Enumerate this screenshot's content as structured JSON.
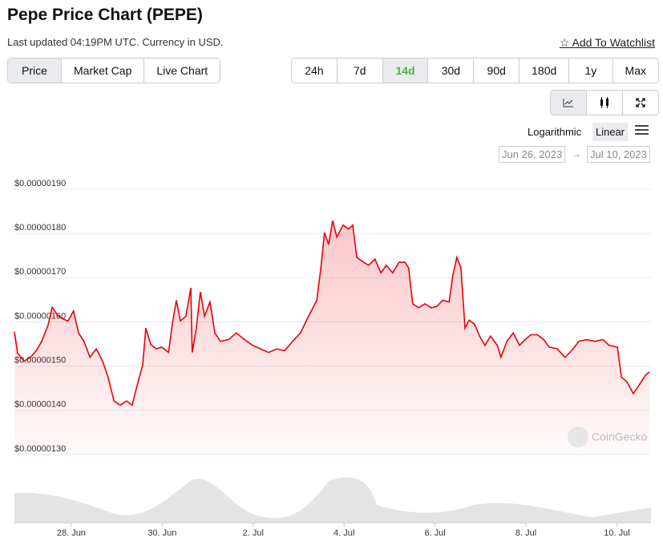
{
  "header": {
    "title": "Pepe Price Chart (PEPE)",
    "subtitle": "Last updated 04:19PM UTC. Currency in USD.",
    "watchlist": "Add To Watchlist"
  },
  "tabs": [
    "Price",
    "Market Cap",
    "Live Chart"
  ],
  "ranges": [
    "24h",
    "7d",
    "14d",
    "30d",
    "90d",
    "180d",
    "1y",
    "Max"
  ],
  "scale_options": [
    "Logarithmic",
    "Linear"
  ],
  "date_range": {
    "from": "Jun 26, 2023",
    "arrow": "→",
    "to": "Jul 10, 2023"
  },
  "watermark": "CoinGecko",
  "chart_data": {
    "type": "line",
    "x": [
      0.75,
      0.82,
      0.96,
      1.1,
      1.23,
      1.35,
      1.49,
      1.58,
      1.7,
      1.81,
      1.93,
      2.05,
      2.16,
      2.28,
      2.41,
      2.55,
      2.69,
      2.81,
      2.94,
      3.08,
      3.22,
      3.34,
      3.47,
      3.57,
      3.64,
      3.75,
      3.87,
      3.99,
      4.14,
      4.22,
      4.31,
      4.4,
      4.52,
      4.63,
      4.66,
      4.75,
      4.84,
      4.93,
      5.05,
      5.16,
      5.28,
      5.46,
      5.63,
      5.81,
      5.99,
      6.16,
      6.34,
      6.52,
      6.69,
      6.87,
      7.04,
      7.22,
      7.4,
      7.49,
      7.57,
      7.66,
      7.75,
      7.84,
      7.98,
      8.1,
      8.19,
      8.28,
      8.4,
      8.54,
      8.68,
      8.81,
      8.93,
      9.07,
      9.21,
      9.34,
      9.42,
      9.51,
      9.64,
      9.78,
      9.92,
      10.04,
      10.17,
      10.31,
      10.39,
      10.48,
      10.57,
      10.66,
      10.75,
      10.87,
      10.98,
      11.1,
      11.22,
      11.37,
      11.45,
      11.58,
      11.72,
      11.86,
      11.98,
      12.11,
      12.25,
      12.39,
      12.51,
      12.69,
      12.86,
      13.04,
      13.16,
      13.34,
      13.52,
      13.69,
      13.83,
      14.01,
      14.1,
      14.22,
      14.36,
      14.45,
      14.54,
      14.63,
      14.72
    ],
    "series": [
      {
        "color": "#e8000b",
        "values": [
          1.578e-06,
          1.529e-06,
          1.511e-06,
          1.52e-06,
          1.535e-06,
          1.556e-06,
          1.593e-06,
          1.633e-06,
          1.615e-06,
          1.607e-06,
          1.602e-06,
          1.625e-06,
          1.575e-06,
          1.556e-06,
          1.52e-06,
          1.539e-06,
          1.511e-06,
          1.475e-06,
          1.421e-06,
          1.412e-06,
          1.421e-06,
          1.412e-06,
          1.465e-06,
          1.502e-06,
          1.586e-06,
          1.549e-06,
          1.539e-06,
          1.543e-06,
          1.531e-06,
          1.593e-06,
          1.649e-06,
          1.602e-06,
          1.613e-06,
          1.677e-06,
          1.531e-06,
          1.586e-06,
          1.668e-06,
          1.613e-06,
          1.645e-06,
          1.575e-06,
          1.556e-06,
          1.56e-06,
          1.575e-06,
          1.56e-06,
          1.547e-06,
          1.539e-06,
          1.531e-06,
          1.539e-06,
          1.535e-06,
          1.556e-06,
          1.575e-06,
          1.613e-06,
          1.649e-06,
          1.722e-06,
          1.802e-06,
          1.775e-06,
          1.829e-06,
          1.792e-06,
          1.819e-06,
          1.81e-06,
          1.819e-06,
          1.746e-06,
          1.737e-06,
          1.728e-06,
          1.742e-06,
          1.711e-06,
          1.728e-06,
          1.711e-06,
          1.735e-06,
          1.735e-06,
          1.722e-06,
          1.641e-06,
          1.632e-06,
          1.641e-06,
          1.632e-06,
          1.635e-06,
          1.649e-06,
          1.645e-06,
          1.704e-06,
          1.746e-06,
          1.722e-06,
          1.586e-06,
          1.604e-06,
          1.595e-06,
          1.568e-06,
          1.547e-06,
          1.568e-06,
          1.547e-06,
          1.52e-06,
          1.556e-06,
          1.575e-06,
          1.547e-06,
          1.56e-06,
          1.571e-06,
          1.571e-06,
          1.56e-06,
          1.543e-06,
          1.539e-06,
          1.52e-06,
          1.539e-06,
          1.556e-06,
          1.56e-06,
          1.556e-06,
          1.56e-06,
          1.547e-06,
          1.543e-06,
          1.475e-06,
          1.465e-06,
          1.438e-06,
          1.451e-06,
          1.465e-06,
          1.48e-06,
          1.487e-06
        ]
      }
    ],
    "xlim": [
      0.75,
      14.75
    ],
    "xticks": [
      {
        "value": 2,
        "label": "28. Jun"
      },
      {
        "value": 4,
        "label": "30. Jun"
      },
      {
        "value": 6,
        "label": "2. Jul"
      },
      {
        "value": 8,
        "label": "4. Jul"
      },
      {
        "value": 10,
        "label": "6. Jul"
      },
      {
        "value": 12,
        "label": "8. Jul"
      },
      {
        "value": 14,
        "label": "10. Jul"
      }
    ],
    "ylim": [
      1.3e-06,
      1.9e-06
    ],
    "yticks": [
      {
        "value": 1.3e-06,
        "label": "$0.00000130"
      },
      {
        "value": 1.4e-06,
        "label": "$0.00000140"
      },
      {
        "value": 1.5e-06,
        "label": "$0.00000150"
      },
      {
        "value": 1.6e-06,
        "label": "$0.00000160"
      },
      {
        "value": 1.7e-06,
        "label": "$0.00000170"
      },
      {
        "value": 1.8e-06,
        "label": "$0.00000180"
      },
      {
        "value": 1.9e-06,
        "label": "$0.00000190"
      }
    ],
    "grid": true
  }
}
